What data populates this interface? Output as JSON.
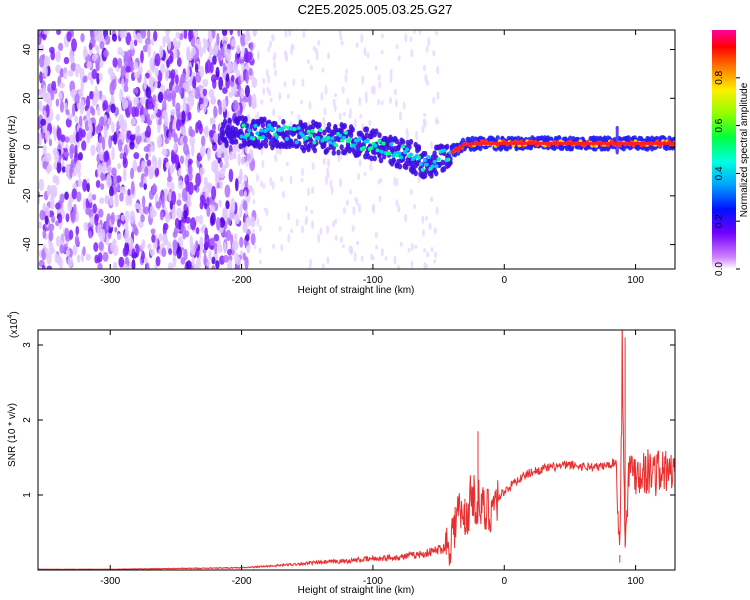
{
  "title": "C2E5.2025.005.03.25.G27",
  "chart_data": [
    {
      "type": "heatmap",
      "xlabel": "Height of straight line (km)",
      "ylabel": "Frequency (Hz)",
      "xlim": [
        -355,
        130
      ],
      "ylim": [
        -50,
        48
      ],
      "x_ticks": [
        -300,
        -200,
        -100,
        0,
        100
      ],
      "y_ticks": [
        -40,
        -20,
        0,
        20,
        40
      ],
      "colorbar": {
        "label": "Normalized spectral amplitude",
        "range": [
          0,
          1
        ],
        "ticks": [
          "0.0",
          "0.2",
          "0.4",
          "0.6",
          "0.8"
        ],
        "colors": [
          "#ffffff",
          "#b060ff",
          "#3000ff",
          "#00aaff",
          "#00ffff",
          "#00ff40",
          "#a0ff00",
          "#ffff00",
          "#ff8000",
          "#ff0000",
          "#ff00a0"
        ]
      },
      "ridge": {
        "x": [
          -215,
          -200,
          -180,
          -160,
          -140,
          -120,
          -100,
          -80,
          -70,
          -60,
          -50,
          -40,
          -30,
          -20,
          0,
          50,
          85,
          100,
          130
        ],
        "y": [
          5,
          6,
          6,
          5,
          4,
          3,
          1,
          -2,
          -4,
          -7,
          -5,
          -2,
          1,
          1.5,
          1.5,
          1.5,
          1.5,
          1.5,
          1.5
        ]
      }
    },
    {
      "type": "line",
      "xlabel": "Height of straight line (km)",
      "ylabel": "SNR (10 * v/v)",
      "y_multiplier": "(x10",
      "y_multiplier_exp": "4",
      "y_multiplier_close": ")",
      "xlim": [
        -355,
        130
      ],
      "ylim": [
        0,
        3.2
      ],
      "x_ticks": [
        -300,
        -200,
        -100,
        0,
        100
      ],
      "y_ticks": [
        1,
        2,
        3
      ],
      "series": [
        {
          "color": "#e83030",
          "x": [
            -355,
            -300,
            -250,
            -200,
            -180,
            -150,
            -120,
            -100,
            -80,
            -60,
            -45,
            -40,
            -35,
            -30,
            -25,
            -20,
            -15,
            -10,
            0,
            10,
            20,
            30,
            40,
            50,
            60,
            70,
            80,
            85,
            88,
            90,
            92,
            95,
            100,
            110,
            130
          ],
          "y": [
            0.01,
            0.01,
            0.02,
            0.03,
            0.05,
            0.09,
            0.12,
            0.15,
            0.17,
            0.22,
            0.3,
            0.45,
            0.8,
            0.6,
            1.0,
            0.9,
            0.75,
            0.85,
            1.05,
            1.2,
            1.3,
            1.35,
            1.38,
            1.4,
            1.38,
            1.37,
            1.4,
            1.45,
            0.2,
            3.15,
            0.3,
            1.35,
            1.32,
            1.31,
            1.3
          ],
          "spikes": [
            [
              -20,
              1.85
            ],
            [
              -30,
              0.95
            ],
            [
              90,
              3.15
            ],
            [
              92,
              3.1
            ],
            [
              88,
              0.1
            ]
          ]
        }
      ]
    }
  ]
}
